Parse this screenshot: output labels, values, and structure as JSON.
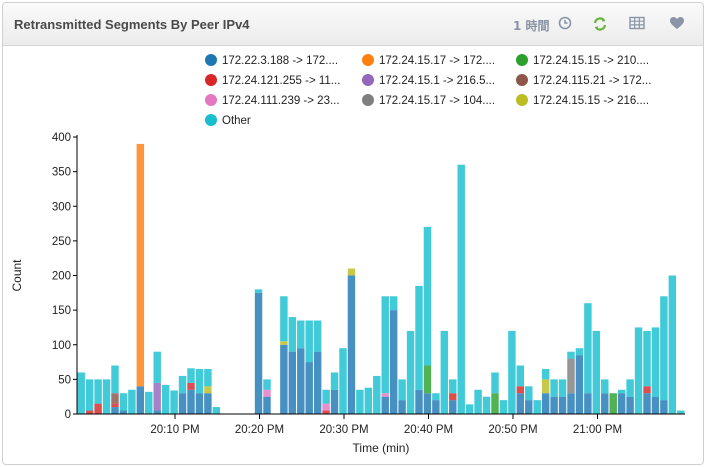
{
  "panel": {
    "title": "Retransmitted Segments By Peer IPv4",
    "time_range": "1 時間",
    "icons": [
      "clock-icon",
      "refresh-icon",
      "table-icon",
      "heart-icon"
    ]
  },
  "chart_data": {
    "type": "bar",
    "stacked": true,
    "title": "",
    "xlabel": "Time (min)",
    "ylabel": "Count",
    "ylim": [
      0,
      400
    ],
    "yticks": [
      0,
      50,
      100,
      150,
      200,
      250,
      300,
      350,
      400
    ],
    "xticks": [
      "20:10 PM",
      "20:20 PM",
      "20:30 PM",
      "20:40 PM",
      "20:50 PM",
      "21:00 PM"
    ],
    "grid": false,
    "legend_position": "top",
    "series": [
      {
        "name": "172.22.3.188 -> 172....",
        "color": "#1f77b4",
        "values": [
          0,
          0,
          0,
          0,
          10,
          5,
          0,
          40,
          0,
          5,
          0,
          0,
          30,
          35,
          30,
          30,
          0,
          0,
          0,
          0,
          0,
          175,
          25,
          0,
          100,
          90,
          95,
          75,
          90,
          0,
          35,
          0,
          200,
          0,
          0,
          0,
          25,
          150,
          20,
          0,
          35,
          30,
          20,
          0,
          20,
          0,
          0,
          0,
          0,
          0,
          0,
          0,
          30,
          20,
          0,
          30,
          25,
          25,
          30,
          85,
          30,
          0,
          30,
          0,
          30,
          25,
          0,
          30,
          25,
          20,
          0,
          0
        ]
      },
      {
        "name": "172.24.15.17 -> 172....",
        "color": "#ff7f0e",
        "values": [
          0,
          0,
          0,
          0,
          0,
          0,
          0,
          350,
          0,
          0,
          0,
          0,
          0,
          0,
          0,
          0,
          0,
          0,
          0,
          0,
          0,
          0,
          0,
          0,
          0,
          0,
          0,
          0,
          0,
          0,
          0,
          0,
          0,
          0,
          0,
          0,
          0,
          0,
          0,
          0,
          0,
          0,
          0,
          0,
          0,
          0,
          0,
          0,
          0,
          0,
          0,
          0,
          0,
          0,
          0,
          0,
          0,
          0,
          0,
          0,
          0,
          0,
          0,
          0,
          0,
          0,
          0,
          0,
          0,
          0,
          0,
          0
        ]
      },
      {
        "name": "172.24.15.15 -> 210....",
        "color": "#2ca02c",
        "values": [
          0,
          0,
          0,
          0,
          0,
          0,
          0,
          0,
          0,
          0,
          0,
          0,
          0,
          0,
          0,
          0,
          0,
          0,
          0,
          0,
          0,
          0,
          0,
          0,
          0,
          0,
          0,
          0,
          0,
          0,
          0,
          0,
          0,
          0,
          0,
          0,
          0,
          0,
          0,
          0,
          0,
          40,
          0,
          0,
          0,
          0,
          0,
          0,
          0,
          30,
          0,
          0,
          0,
          0,
          0,
          0,
          0,
          0,
          0,
          0,
          0,
          0,
          0,
          30,
          0,
          0,
          0,
          0,
          0,
          0,
          0,
          0
        ]
      },
      {
        "name": "172.24.121.255 -> 11...",
        "color": "#d62728",
        "values": [
          0,
          5,
          15,
          0,
          5,
          0,
          0,
          0,
          0,
          0,
          0,
          0,
          0,
          10,
          0,
          0,
          0,
          0,
          0,
          0,
          0,
          0,
          0,
          0,
          0,
          0,
          0,
          0,
          0,
          5,
          0,
          0,
          0,
          0,
          0,
          0,
          0,
          0,
          0,
          0,
          0,
          0,
          0,
          0,
          10,
          0,
          0,
          0,
          0,
          0,
          0,
          0,
          10,
          0,
          0,
          0,
          0,
          0,
          0,
          0,
          0,
          0,
          0,
          0,
          0,
          0,
          0,
          10,
          0,
          0,
          0,
          0
        ]
      },
      {
        "name": "172.24.15.1 -> 216.5...",
        "color": "#9467bd",
        "values": [
          0,
          0,
          0,
          0,
          0,
          0,
          0,
          0,
          0,
          40,
          0,
          0,
          0,
          0,
          0,
          0,
          0,
          0,
          0,
          0,
          0,
          0,
          0,
          0,
          0,
          0,
          0,
          0,
          0,
          0,
          0,
          0,
          0,
          0,
          0,
          0,
          0,
          0,
          0,
          0,
          0,
          0,
          0,
          0,
          0,
          0,
          0,
          0,
          0,
          0,
          0,
          0,
          0,
          0,
          0,
          0,
          0,
          0,
          0,
          0,
          0,
          0,
          0,
          0,
          0,
          0,
          0,
          0,
          0,
          0,
          0,
          0
        ]
      },
      {
        "name": "172.24.115.21 -> 172...",
        "color": "#8c564b",
        "values": [
          0,
          0,
          0,
          0,
          15,
          0,
          0,
          0,
          0,
          0,
          0,
          0,
          0,
          0,
          0,
          0,
          0,
          0,
          0,
          0,
          0,
          0,
          0,
          0,
          0,
          0,
          0,
          0,
          0,
          0,
          0,
          0,
          0,
          0,
          0,
          0,
          0,
          0,
          0,
          0,
          0,
          0,
          0,
          0,
          0,
          0,
          0,
          0,
          0,
          0,
          0,
          0,
          0,
          0,
          0,
          0,
          0,
          0,
          0,
          0,
          0,
          0,
          0,
          0,
          0,
          0,
          0,
          0,
          0,
          0,
          0,
          0
        ]
      },
      {
        "name": "172.24.111.239 -> 23...",
        "color": "#e377c2",
        "values": [
          0,
          0,
          0,
          0,
          0,
          0,
          0,
          0,
          0,
          0,
          0,
          0,
          0,
          0,
          0,
          0,
          0,
          0,
          0,
          0,
          0,
          0,
          10,
          0,
          0,
          0,
          0,
          0,
          0,
          10,
          0,
          0,
          0,
          0,
          0,
          0,
          5,
          0,
          0,
          0,
          0,
          0,
          0,
          0,
          0,
          0,
          0,
          0,
          0,
          0,
          0,
          0,
          0,
          0,
          0,
          0,
          0,
          0,
          0,
          0,
          0,
          0,
          0,
          0,
          0,
          0,
          0,
          0,
          0,
          0,
          0,
          0
        ]
      },
      {
        "name": "172.24.15.17 -> 104....",
        "color": "#7f7f7f",
        "values": [
          0,
          0,
          0,
          0,
          0,
          0,
          0,
          0,
          0,
          0,
          0,
          0,
          0,
          0,
          0,
          0,
          0,
          0,
          0,
          0,
          0,
          0,
          0,
          0,
          0,
          0,
          0,
          0,
          0,
          0,
          0,
          0,
          0,
          0,
          0,
          0,
          0,
          0,
          0,
          0,
          0,
          0,
          0,
          0,
          0,
          0,
          0,
          0,
          0,
          0,
          0,
          0,
          0,
          0,
          0,
          0,
          0,
          0,
          50,
          0,
          0,
          0,
          0,
          0,
          0,
          0,
          0,
          0,
          0,
          0,
          0,
          0
        ]
      },
      {
        "name": "172.24.15.15 -> 216....",
        "color": "#bcbd22",
        "values": [
          0,
          0,
          0,
          0,
          0,
          0,
          0,
          0,
          0,
          0,
          0,
          0,
          0,
          0,
          0,
          10,
          0,
          0,
          0,
          0,
          0,
          0,
          0,
          0,
          5,
          0,
          0,
          0,
          0,
          0,
          0,
          0,
          10,
          0,
          0,
          0,
          0,
          0,
          0,
          0,
          0,
          0,
          0,
          0,
          0,
          0,
          0,
          0,
          0,
          0,
          0,
          0,
          0,
          0,
          0,
          20,
          0,
          0,
          0,
          0,
          0,
          0,
          0,
          0,
          0,
          0,
          0,
          0,
          0,
          0,
          0,
          0
        ]
      },
      {
        "name": "Other",
        "color": "#17becf",
        "values": [
          60,
          45,
          35,
          50,
          40,
          25,
          35,
          0,
          32,
          45,
          42,
          34,
          25,
          21,
          35,
          25,
          10,
          0,
          0,
          0,
          0,
          5,
          15,
          0,
          65,
          50,
          40,
          60,
          45,
          20,
          25,
          95,
          0,
          35,
          38,
          55,
          140,
          20,
          30,
          120,
          150,
          200,
          10,
          120,
          20,
          360,
          14,
          35,
          25,
          30,
          20,
          120,
          30,
          20,
          20,
          15,
          25,
          25,
          10,
          10,
          130,
          120,
          20,
          0,
          5,
          25,
          125,
          80,
          100,
          150,
          200,
          5
        ]
      }
    ]
  }
}
